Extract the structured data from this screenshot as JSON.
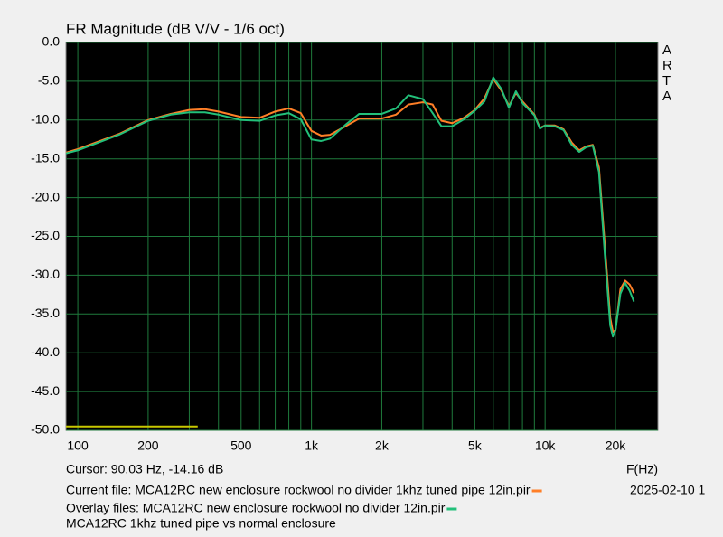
{
  "chart_data": {
    "type": "line",
    "title": "FR Magnitude (dB V/V - 1/6 oct)",
    "side_label": "ARTA",
    "x_label": "F(Hz)",
    "cursor": "Cursor: 90.03 Hz, -14.16 dB",
    "current_file_date": "2025-02-10  1",
    "comment": "MCA12RC 1khz tuned pipe vs normal enclosure",
    "log_x": true,
    "grid": true,
    "xlim": [
      89,
      30400
    ],
    "ylim": [
      -50,
      0
    ],
    "xticks": [
      100,
      200,
      500,
      {
        "value": 1000,
        "label": "1k"
      },
      {
        "value": 2000,
        "label": "2k"
      },
      {
        "value": 5000,
        "label": "5k"
      },
      {
        "value": 10000,
        "label": "10k"
      },
      {
        "value": 20000,
        "label": "20k"
      }
    ],
    "xminor_ticks": [
      300,
      400,
      600,
      700,
      800,
      900,
      3000,
      4000,
      6000,
      7000,
      8000,
      9000
    ],
    "yticks": [
      {
        "value": 0,
        "label": "0.0"
      },
      {
        "value": -5,
        "label": "-5.0"
      },
      {
        "value": -10,
        "label": "-10.0"
      },
      {
        "value": -15,
        "label": "-15.0"
      },
      {
        "value": -20,
        "label": "-20.0"
      },
      {
        "value": -25,
        "label": "-25.0"
      },
      {
        "value": -30,
        "label": "-30.0"
      },
      {
        "value": -35,
        "label": "-35.0"
      },
      {
        "value": -40,
        "label": "-40.0"
      },
      {
        "value": -45,
        "label": "-45.0"
      },
      {
        "value": -50,
        "label": "-50.0"
      }
    ],
    "grid_color": "#1f7a3c",
    "x": [
      89,
      100,
      150,
      200,
      250,
      300,
      350,
      400,
      500,
      600,
      700,
      800,
      900,
      1000,
      1100,
      1200,
      1400,
      1600,
      2000,
      2300,
      2600,
      3000,
      3300,
      3600,
      4000,
      4500,
      5000,
      5500,
      6000,
      6500,
      7000,
      7500,
      8000,
      9000,
      9500,
      10000,
      11000,
      12000,
      13000,
      14000,
      15000,
      16000,
      17000,
      18000,
      19000,
      19500,
      20000,
      21000,
      22000,
      23000,
      24000
    ],
    "series": [
      {
        "name": "Current file: MCA12RC new enclosure rockwool no divider 1khz tuned pipe 12in.pir",
        "color": "#ff7f27",
        "values": [
          -14.2,
          -13.75,
          -11.8,
          -10.0,
          -9.2,
          -8.7,
          -8.6,
          -8.9,
          -9.6,
          -9.7,
          -8.9,
          -8.5,
          -9.1,
          -11.4,
          -12.0,
          -11.9,
          -10.8,
          -9.8,
          -9.8,
          -9.3,
          -8.0,
          -7.7,
          -8.0,
          -10.1,
          -10.4,
          -9.7,
          -8.7,
          -7.2,
          -4.7,
          -6.2,
          -8.2,
          -6.5,
          -7.6,
          -9.3,
          -11.0,
          -10.7,
          -10.7,
          -11.2,
          -12.9,
          -13.9,
          -13.4,
          -13.2,
          -16.1,
          -26.0,
          -35.5,
          -37.3,
          -37.1,
          -31.8,
          -30.7,
          -31.2,
          -32.3
        ]
      },
      {
        "name": "Overlay files: MCA12RC new enclosure rockwool no divider 12in.pir",
        "color": "#22c07a",
        "values": [
          -14.3,
          -13.9,
          -11.9,
          -10.1,
          -9.3,
          -9.0,
          -9.0,
          -9.3,
          -10.0,
          -10.1,
          -9.4,
          -9.1,
          -9.9,
          -12.5,
          -12.7,
          -12.4,
          -10.6,
          -9.2,
          -9.2,
          -8.5,
          -6.8,
          -7.3,
          -9.1,
          -10.8,
          -10.8,
          -9.9,
          -8.8,
          -7.6,
          -4.5,
          -6.0,
          -8.4,
          -6.3,
          -7.8,
          -9.4,
          -11.1,
          -10.7,
          -10.8,
          -11.3,
          -13.2,
          -14.1,
          -13.5,
          -13.3,
          -16.7,
          -27.2,
          -36.5,
          -37.9,
          -37.1,
          -32.4,
          -31.0,
          -32.0,
          -33.4
        ]
      }
    ],
    "baseline_marker": {
      "x": [
        89,
        326
      ],
      "values": [
        -49.5,
        -49.5
      ],
      "color": "#c8c800"
    }
  }
}
